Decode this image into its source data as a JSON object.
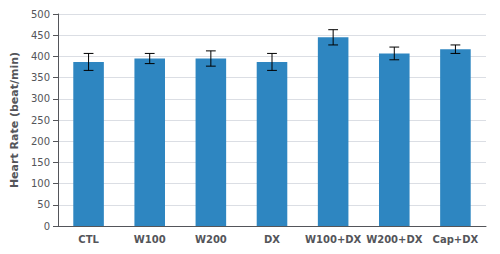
{
  "chart_data": {
    "type": "bar",
    "categories": [
      "CTL",
      "W100",
      "W200",
      "DX",
      "W100+DX",
      "W200+DX",
      "Cap+DX"
    ],
    "values": [
      387,
      395,
      395,
      387,
      445,
      407,
      417
    ],
    "errors": [
      20,
      12,
      18,
      20,
      18,
      15,
      10
    ],
    "color": "#2E86C1",
    "ylabel": "Heart Rate (beat/min)",
    "ylim": [
      0,
      500
    ],
    "yticks": [
      0,
      50,
      100,
      150,
      200,
      250,
      300,
      350,
      400,
      450,
      500
    ],
    "grid": true
  }
}
